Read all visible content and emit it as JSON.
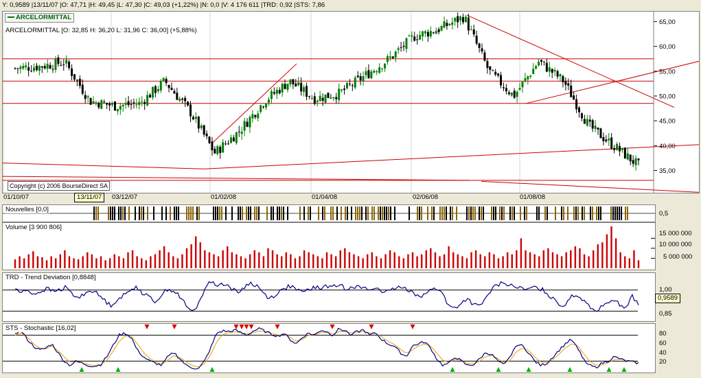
{
  "header": {
    "status_line": "Y: 0,9589 |13/11/07 |O: 47,71 |H: 49,45 |L: 47,30 |C: 49,03 (+1,22%) |N: 0,0 |V: 4 176 611 |TRD: 0,92 |STS: 7,86",
    "ticker_button": "ARCELORMITTAL"
  },
  "price_panel": {
    "title": "ARCELORMITTAL [O: 32,85  H: 36,20  L: 31,96  C: 36,00] (+5,88%)",
    "copyright": "Copyright (c) 2006 BourseDirect SA",
    "y_ticks": [
      "65,00",
      "60,00",
      "55,00",
      "50,00",
      "45,00",
      "40,00",
      "35,00"
    ],
    "date_ticks": [
      "01/10/07",
      "03/12/07",
      "01/02/08",
      "01/04/08",
      "02/06/08",
      "01/08/08"
    ],
    "cursor_date": "13/11/07"
  },
  "news_panel": {
    "title": "Nouvelles [0,0]",
    "y_tick": "0,5"
  },
  "volume_panel": {
    "title": "Volume [3 900 806]",
    "y_ticks": [
      "15 000 000",
      "10 000 000",
      "5 000 000"
    ]
  },
  "trd_panel": {
    "title": "TRD - Trend Deviation [0,8848]",
    "y_ticks": [
      "1,00",
      "0,85"
    ],
    "cursor_value": "0,9589"
  },
  "sts_panel": {
    "title": "STS - Stochastic [16,02]",
    "y_ticks": [
      "80",
      "60",
      "40",
      "20"
    ]
  },
  "colors": {
    "up": "#008000",
    "down": "#cc0000",
    "line": "#cc0000",
    "indicator": "#000080",
    "signal": "#e8a000",
    "volume": "#cc0000"
  },
  "chart_data": {
    "type": "line",
    "title": "ARCELORMITTAL [O: 32,85  H: 36,20  L: 31,96  C: 36,00] (+5,88%)",
    "x_range": [
      "01/10/07",
      "17/09/08"
    ],
    "ylim": [
      30.5,
      67
    ],
    "series": [
      {
        "name": "ARCELORMITTAL",
        "x": [
          "01/10/07",
          "15/10/07",
          "29/10/07",
          "13/11/07",
          "26/11/07",
          "10/12/07",
          "02/01/08",
          "15/01/08",
          "23/01/08",
          "01/02/08",
          "15/02/08",
          "03/03/08",
          "17/03/08",
          "01/04/08",
          "15/04/08",
          "02/05/08",
          "15/05/08",
          "02/06/08",
          "16/06/08",
          "01/07/08",
          "15/07/08",
          "01/08/08",
          "15/08/08",
          "01/09/08",
          "08/09/08",
          "17/09/08"
        ],
        "values": [
          55.6,
          56.0,
          56.8,
          49.0,
          48.0,
          48.5,
          53.0,
          47.0,
          38.5,
          43.0,
          49.0,
          53.0,
          49.5,
          50.5,
          54.0,
          57.5,
          62.0,
          63.5,
          66.0,
          55.0,
          50.0,
          57.0,
          53.0,
          44.0,
          40.0,
          36.0
        ]
      }
    ],
    "volume": {
      "values": [
        4.5,
        6,
        5,
        7,
        8.5,
        6,
        5.5,
        4,
        6,
        5,
        7,
        9,
        6,
        5,
        4.5,
        6,
        8,
        7,
        5,
        6,
        4,
        5,
        7,
        6,
        5,
        8,
        9,
        6,
        5,
        4,
        6,
        7,
        9,
        11,
        8,
        6,
        5,
        7,
        10,
        12,
        16,
        13,
        9,
        8,
        7,
        6,
        9,
        11,
        8,
        7,
        6,
        5,
        7,
        9,
        8,
        6,
        10,
        9,
        7,
        6,
        8,
        7,
        5,
        6,
        9,
        8,
        7,
        6,
        5,
        8,
        7,
        6,
        9,
        10,
        8,
        7,
        6,
        5,
        7,
        8,
        6,
        5,
        7,
        9,
        8,
        6,
        5,
        7,
        8,
        6,
        7,
        9,
        10,
        8,
        6,
        7,
        11,
        8,
        7,
        6,
        5,
        8,
        9,
        7,
        6,
        8,
        7,
        5,
        6,
        8,
        7,
        9,
        15,
        9,
        8,
        7,
        6,
        9,
        10,
        8,
        7,
        6,
        8,
        9,
        11,
        10,
        7,
        6,
        9,
        12,
        13,
        17,
        21,
        15,
        8,
        6,
        5,
        9,
        4
      ]
    },
    "trd": {
      "ylim": [
        0.78,
        1.12
      ],
      "values": [
        1.01,
        0.98,
        1.0,
        0.97,
        0.99,
        1.01,
        0.99,
        1.0,
        1.02,
        0.97,
        0.94,
        0.98,
        1.0,
        0.97,
        0.93,
        0.89,
        0.93,
        0.96,
        0.99,
        1.03,
        0.98,
        0.95,
        0.92,
        0.96,
        1.01,
        0.99,
        0.95,
        0.88,
        0.84,
        0.92,
        1.03,
        1.06,
        1.03,
        1.05,
        1.01,
        0.98,
        1.02,
        1.05,
        1.03,
        0.98,
        0.94,
        0.97,
        1.0,
        1.03,
        1.01,
        0.98,
        1.0,
        1.02,
        1.01,
        1.03,
        1.02,
        1.04,
        1.01,
        1.03,
        1.02,
        1.01,
        1.0,
        1.02,
        0.98,
        0.99,
        1.02,
        1.01,
        1.0,
        0.97,
        0.96,
        0.99,
        1.01,
        1.0,
        0.89,
        0.87,
        0.9,
        0.94,
        0.9,
        0.88,
        0.94,
        1.01,
        1.04,
        1.05,
        1.03,
        1.02,
        1.0,
        1.01,
        1.02,
        1.0,
        0.96,
        0.93,
        0.88,
        0.93,
        0.97,
        0.94,
        0.91,
        0.85,
        0.87,
        0.92,
        0.93,
        0.9,
        0.87,
        0.96,
        0.89
      ]
    },
    "sts": {
      "ylim": [
        0,
        100
      ],
      "k": [
        85,
        90,
        70,
        55,
        45,
        50,
        60,
        40,
        20,
        10,
        20,
        15,
        10,
        8,
        12,
        30,
        55,
        80,
        85,
        75,
        45,
        30,
        20,
        15,
        10,
        30,
        40,
        25,
        10,
        5,
        2,
        20,
        50,
        85,
        90,
        88,
        92,
        85,
        80,
        90,
        95,
        88,
        82,
        78,
        84,
        70,
        60,
        75,
        85,
        80,
        92,
        88,
        80,
        95,
        90,
        82,
        88,
        92,
        80,
        85,
        70,
        60,
        55,
        40,
        30,
        55,
        60,
        65,
        50,
        25,
        10,
        15,
        30,
        20,
        10,
        12,
        25,
        40,
        35,
        20,
        10,
        30,
        60,
        55,
        40,
        20,
        10,
        15,
        30,
        45,
        60,
        70,
        50,
        25,
        10,
        5,
        15,
        20,
        30,
        25,
        20,
        18,
        15
      ],
      "d": [
        80,
        85,
        75,
        60,
        50,
        48,
        55,
        45,
        30,
        18,
        18,
        16,
        12,
        10,
        12,
        22,
        42,
        65,
        78,
        78,
        60,
        40,
        27,
        18,
        13,
        22,
        33,
        28,
        18,
        10,
        6,
        14,
        35,
        65,
        82,
        86,
        88,
        86,
        83,
        86,
        90,
        88,
        84,
        80,
        82,
        75,
        66,
        70,
        80,
        81,
        86,
        87,
        83,
        88,
        89,
        85,
        86,
        89,
        85,
        84,
        76,
        66,
        59,
        48,
        38,
        46,
        55,
        60,
        55,
        38,
        22,
        17,
        24,
        22,
        15,
        13,
        20,
        31,
        33,
        26,
        16,
        22,
        42,
        50,
        45,
        30,
        18,
        16,
        24,
        36,
        50,
        60,
        56,
        38,
        20,
        11,
        11,
        16,
        23,
        25,
        22,
        19,
        17
      ]
    }
  }
}
